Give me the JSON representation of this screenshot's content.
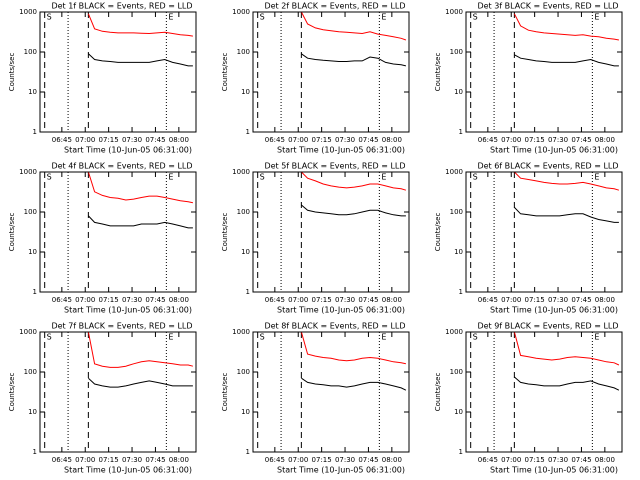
{
  "chart_data": [
    {
      "type": "line",
      "title": "Det 1f BLACK = Events, RED = LLD",
      "ylabel": "Counts/sec",
      "xlabel": "Start Time (10-Jun-05 06:31:00)",
      "log_y": true,
      "grid": false,
      "xlim": [
        0,
        100
      ],
      "ylim": [
        1,
        1000
      ],
      "yticks": [
        1,
        10,
        100,
        1000
      ],
      "xticks": [
        {
          "value": 14,
          "label": "06:45"
        },
        {
          "value": 29,
          "label": "07:00"
        },
        {
          "value": 44,
          "label": "07:15"
        },
        {
          "value": 59,
          "label": "07:30"
        },
        {
          "value": 74,
          "label": "07:45"
        },
        {
          "value": 89,
          "label": "08:00"
        }
      ],
      "vlines": [
        {
          "x": 3,
          "style": "dashed",
          "label": "S"
        },
        {
          "x": 18,
          "style": "dotted"
        },
        {
          "x": 31,
          "style": "dashed"
        },
        {
          "x": 81,
          "style": "dotted",
          "label": "E"
        }
      ],
      "x": [
        31,
        35,
        40,
        45,
        50,
        55,
        60,
        65,
        70,
        75,
        80,
        85,
        90,
        95,
        98
      ],
      "series": [
        {
          "color": "#ff0000",
          "values": [
            900,
            380,
            330,
            310,
            300,
            300,
            300,
            295,
            290,
            300,
            310,
            290,
            270,
            260,
            250
          ]
        },
        {
          "color": "#000000",
          "values": [
            90,
            65,
            60,
            58,
            55,
            55,
            55,
            55,
            55,
            60,
            65,
            55,
            50,
            45,
            45
          ]
        }
      ]
    },
    {
      "type": "line",
      "title": "Det 2f BLACK = Events, RED = LLD",
      "ylabel": "Counts/sec",
      "xlabel": "Start Time (10-Jun-05 06:31:00)",
      "log_y": true,
      "grid": false,
      "xlim": [
        0,
        100
      ],
      "ylim": [
        1,
        1000
      ],
      "yticks": [
        1,
        10,
        100,
        1000
      ],
      "xticks": [
        {
          "value": 14,
          "label": "06:45"
        },
        {
          "value": 29,
          "label": "07:00"
        },
        {
          "value": 44,
          "label": "07:15"
        },
        {
          "value": 59,
          "label": "07:30"
        },
        {
          "value": 74,
          "label": "07:45"
        },
        {
          "value": 89,
          "label": "08:00"
        }
      ],
      "vlines": [
        {
          "x": 3,
          "style": "dashed",
          "label": "S"
        },
        {
          "x": 18,
          "style": "dotted"
        },
        {
          "x": 31,
          "style": "dashed"
        },
        {
          "x": 81,
          "style": "dotted",
          "label": "E"
        }
      ],
      "x": [
        31,
        35,
        40,
        45,
        50,
        55,
        60,
        65,
        70,
        75,
        80,
        85,
        90,
        95,
        98
      ],
      "series": [
        {
          "color": "#ff0000",
          "values": [
            1000,
            500,
            400,
            360,
            340,
            320,
            310,
            300,
            290,
            320,
            280,
            260,
            240,
            220,
            200
          ]
        },
        {
          "color": "#000000",
          "values": [
            90,
            70,
            65,
            62,
            60,
            58,
            58,
            60,
            60,
            75,
            70,
            55,
            50,
            48,
            45
          ]
        }
      ]
    },
    {
      "type": "line",
      "title": "Det 3f BLACK = Events, RED = LLD",
      "ylabel": "Counts/sec",
      "xlabel": "Start Time (10-Jun-05 06:31:00)",
      "log_y": true,
      "grid": false,
      "xlim": [
        0,
        100
      ],
      "ylim": [
        1,
        1000
      ],
      "yticks": [
        1,
        10,
        100,
        1000
      ],
      "xticks": [
        {
          "value": 14,
          "label": "06:45"
        },
        {
          "value": 29,
          "label": "07:00"
        },
        {
          "value": 44,
          "label": "07:15"
        },
        {
          "value": 59,
          "label": "07:30"
        },
        {
          "value": 74,
          "label": "07:45"
        },
        {
          "value": 89,
          "label": "08:00"
        }
      ],
      "vlines": [
        {
          "x": 3,
          "style": "dashed",
          "label": "S"
        },
        {
          "x": 18,
          "style": "dotted"
        },
        {
          "x": 31,
          "style": "dashed"
        },
        {
          "x": 81,
          "style": "dotted",
          "label": "E"
        }
      ],
      "x": [
        31,
        35,
        40,
        45,
        50,
        55,
        60,
        65,
        70,
        75,
        80,
        85,
        90,
        95,
        98
      ],
      "series": [
        {
          "color": "#ff0000",
          "values": [
            900,
            450,
            350,
            320,
            300,
            290,
            280,
            270,
            260,
            270,
            250,
            240,
            220,
            210,
            200
          ]
        },
        {
          "color": "#000000",
          "values": [
            85,
            70,
            65,
            60,
            58,
            55,
            55,
            55,
            55,
            60,
            65,
            55,
            50,
            45,
            45
          ]
        }
      ]
    },
    {
      "type": "line",
      "title": "Det 4f BLACK = Events, RED = LLD",
      "ylabel": "Counts/sec",
      "xlabel": "Start Time (10-Jun-05 06:31:00)",
      "log_y": true,
      "grid": false,
      "xlim": [
        0,
        100
      ],
      "ylim": [
        1,
        1000
      ],
      "yticks": [
        1,
        10,
        100,
        1000
      ],
      "xticks": [
        {
          "value": 14,
          "label": "06:45"
        },
        {
          "value": 29,
          "label": "07:00"
        },
        {
          "value": 44,
          "label": "07:15"
        },
        {
          "value": 59,
          "label": "07:30"
        },
        {
          "value": 74,
          "label": "07:45"
        },
        {
          "value": 89,
          "label": "08:00"
        }
      ],
      "vlines": [
        {
          "x": 3,
          "style": "dashed",
          "label": "S"
        },
        {
          "x": 18,
          "style": "dotted"
        },
        {
          "x": 31,
          "style": "dashed"
        },
        {
          "x": 81,
          "style": "dotted",
          "label": "E"
        }
      ],
      "x": [
        31,
        35,
        40,
        45,
        50,
        55,
        60,
        65,
        70,
        75,
        80,
        85,
        90,
        95,
        98
      ],
      "series": [
        {
          "color": "#ff0000",
          "values": [
            1000,
            320,
            260,
            230,
            220,
            200,
            210,
            230,
            250,
            250,
            230,
            210,
            190,
            180,
            170
          ]
        },
        {
          "color": "#000000",
          "values": [
            80,
            55,
            50,
            45,
            45,
            45,
            45,
            50,
            50,
            50,
            55,
            50,
            45,
            40,
            40
          ]
        }
      ]
    },
    {
      "type": "line",
      "title": "Det 5f BLACK = Events, RED = LLD",
      "ylabel": "Counts/sec",
      "xlabel": "Start Time (10-Jun-05 06:31:00)",
      "log_y": true,
      "grid": false,
      "xlim": [
        0,
        100
      ],
      "ylim": [
        1,
        1000
      ],
      "yticks": [
        1,
        10,
        100,
        1000
      ],
      "xticks": [
        {
          "value": 14,
          "label": "06:45"
        },
        {
          "value": 29,
          "label": "07:00"
        },
        {
          "value": 44,
          "label": "07:15"
        },
        {
          "value": 59,
          "label": "07:30"
        },
        {
          "value": 74,
          "label": "07:45"
        },
        {
          "value": 89,
          "label": "08:00"
        }
      ],
      "vlines": [
        {
          "x": 3,
          "style": "dashed",
          "label": "S"
        },
        {
          "x": 18,
          "style": "dotted"
        },
        {
          "x": 31,
          "style": "dashed"
        },
        {
          "x": 81,
          "style": "dotted",
          "label": "E"
        }
      ],
      "x": [
        31,
        35,
        40,
        45,
        50,
        55,
        60,
        65,
        70,
        75,
        80,
        85,
        90,
        95,
        98
      ],
      "series": [
        {
          "color": "#ff0000",
          "values": [
            1000,
            700,
            600,
            500,
            450,
            420,
            400,
            420,
            450,
            500,
            500,
            450,
            400,
            380,
            350
          ]
        },
        {
          "color": "#000000",
          "values": [
            150,
            110,
            100,
            95,
            90,
            85,
            85,
            90,
            100,
            110,
            110,
            95,
            85,
            80,
            80
          ]
        }
      ]
    },
    {
      "type": "line",
      "title": "Det 6f BLACK = Events, RED = LLD",
      "ylabel": "Counts/sec",
      "xlabel": "Start Time (10-Jun-05 06:31:00)",
      "log_y": true,
      "grid": false,
      "xlim": [
        0,
        100
      ],
      "ylim": [
        1,
        1000
      ],
      "yticks": [
        1,
        10,
        100,
        1000
      ],
      "xticks": [
        {
          "value": 14,
          "label": "06:45"
        },
        {
          "value": 29,
          "label": "07:00"
        },
        {
          "value": 44,
          "label": "07:15"
        },
        {
          "value": 59,
          "label": "07:30"
        },
        {
          "value": 74,
          "label": "07:45"
        },
        {
          "value": 89,
          "label": "08:00"
        }
      ],
      "vlines": [
        {
          "x": 3,
          "style": "dashed",
          "label": "S"
        },
        {
          "x": 18,
          "style": "dotted"
        },
        {
          "x": 31,
          "style": "dashed"
        },
        {
          "x": 81,
          "style": "dotted",
          "label": "E"
        }
      ],
      "x": [
        31,
        35,
        40,
        45,
        50,
        55,
        60,
        65,
        70,
        75,
        80,
        85,
        90,
        95,
        98
      ],
      "series": [
        {
          "color": "#ff0000",
          "values": [
            1000,
            700,
            650,
            600,
            550,
            520,
            500,
            500,
            520,
            550,
            500,
            450,
            400,
            380,
            350
          ]
        },
        {
          "color": "#000000",
          "values": [
            130,
            90,
            85,
            80,
            80,
            80,
            80,
            85,
            90,
            90,
            75,
            65,
            60,
            55,
            55
          ]
        }
      ]
    },
    {
      "type": "line",
      "title": "Det 7f BLACK = Events, RED = LLD",
      "ylabel": "Counts/sec",
      "xlabel": "Start Time (10-Jun-05 06:31:00)",
      "log_y": true,
      "grid": false,
      "xlim": [
        0,
        100
      ],
      "ylim": [
        1,
        1000
      ],
      "yticks": [
        1,
        10,
        100,
        1000
      ],
      "xticks": [
        {
          "value": 14,
          "label": "06:45"
        },
        {
          "value": 29,
          "label": "07:00"
        },
        {
          "value": 44,
          "label": "07:15"
        },
        {
          "value": 59,
          "label": "07:30"
        },
        {
          "value": 74,
          "label": "07:45"
        },
        {
          "value": 89,
          "label": "08:00"
        }
      ],
      "vlines": [
        {
          "x": 3,
          "style": "dashed",
          "label": "S"
        },
        {
          "x": 18,
          "style": "dotted"
        },
        {
          "x": 31,
          "style": "dashed"
        },
        {
          "x": 81,
          "style": "dotted",
          "label": "E"
        }
      ],
      "x": [
        31,
        35,
        40,
        45,
        50,
        55,
        60,
        65,
        70,
        75,
        80,
        85,
        90,
        95,
        98
      ],
      "series": [
        {
          "color": "#ff0000",
          "values": [
            1000,
            160,
            140,
            130,
            130,
            140,
            160,
            180,
            190,
            180,
            170,
            160,
            150,
            150,
            140
          ]
        },
        {
          "color": "#000000",
          "values": [
            70,
            50,
            45,
            42,
            42,
            45,
            50,
            55,
            60,
            55,
            50,
            45,
            45,
            45,
            45
          ]
        }
      ]
    },
    {
      "type": "line",
      "title": "Det 8f BLACK = Events, RED = LLD",
      "ylabel": "Counts/sec",
      "xlabel": "Start Time (10-Jun-05 06:31:00)",
      "log_y": true,
      "grid": false,
      "xlim": [
        0,
        100
      ],
      "ylim": [
        1,
        1000
      ],
      "yticks": [
        1,
        10,
        100,
        1000
      ],
      "xticks": [
        {
          "value": 14,
          "label": "06:45"
        },
        {
          "value": 29,
          "label": "07:00"
        },
        {
          "value": 44,
          "label": "07:15"
        },
        {
          "value": 59,
          "label": "07:30"
        },
        {
          "value": 74,
          "label": "07:45"
        },
        {
          "value": 89,
          "label": "08:00"
        }
      ],
      "vlines": [
        {
          "x": 3,
          "style": "dashed",
          "label": "S"
        },
        {
          "x": 18,
          "style": "dotted"
        },
        {
          "x": 31,
          "style": "dashed"
        },
        {
          "x": 81,
          "style": "dotted",
          "label": "E"
        }
      ],
      "x": [
        31,
        35,
        40,
        45,
        50,
        55,
        60,
        65,
        70,
        75,
        80,
        85,
        90,
        95,
        98
      ],
      "series": [
        {
          "color": "#ff0000",
          "values": [
            1000,
            280,
            250,
            230,
            220,
            200,
            190,
            200,
            220,
            230,
            220,
            200,
            180,
            170,
            160
          ]
        },
        {
          "color": "#000000",
          "values": [
            70,
            55,
            50,
            48,
            45,
            45,
            42,
            45,
            50,
            55,
            55,
            50,
            45,
            40,
            35
          ]
        }
      ]
    },
    {
      "type": "line",
      "title": "Det 9f BLACK = Events, RED = LLD",
      "ylabel": "Counts/sec",
      "xlabel": "Start Time (10-Jun-05 06:31:00)",
      "log_y": true,
      "grid": false,
      "xlim": [
        0,
        100
      ],
      "ylim": [
        1,
        1000
      ],
      "yticks": [
        1,
        10,
        100,
        1000
      ],
      "xticks": [
        {
          "value": 14,
          "label": "06:45"
        },
        {
          "value": 29,
          "label": "07:00"
        },
        {
          "value": 44,
          "label": "07:15"
        },
        {
          "value": 59,
          "label": "07:30"
        },
        {
          "value": 74,
          "label": "07:45"
        },
        {
          "value": 89,
          "label": "08:00"
        }
      ],
      "vlines": [
        {
          "x": 3,
          "style": "dashed",
          "label": "S"
        },
        {
          "x": 18,
          "style": "dotted"
        },
        {
          "x": 31,
          "style": "dashed"
        },
        {
          "x": 81,
          "style": "dotted",
          "label": "E"
        }
      ],
      "x": [
        31,
        35,
        40,
        45,
        50,
        55,
        60,
        65,
        70,
        75,
        80,
        85,
        90,
        95,
        98
      ],
      "series": [
        {
          "color": "#ff0000",
          "values": [
            1000,
            260,
            240,
            220,
            210,
            200,
            210,
            230,
            240,
            230,
            220,
            200,
            180,
            170,
            150
          ]
        },
        {
          "color": "#000000",
          "values": [
            75,
            55,
            50,
            48,
            45,
            45,
            45,
            50,
            55,
            55,
            60,
            50,
            45,
            40,
            35
          ]
        }
      ]
    }
  ]
}
